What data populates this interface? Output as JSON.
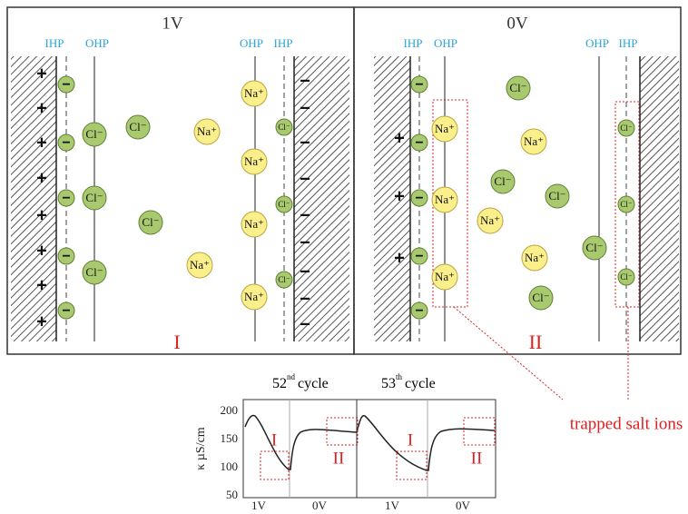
{
  "panels": [
    {
      "voltage": "1V",
      "label": "I",
      "planes": [
        "IHP",
        "OHP",
        "OHP",
        "IHP"
      ],
      "charges": [
        "+",
        "+",
        "+",
        "+",
        "+",
        "+",
        "+",
        "+",
        "−",
        "−",
        "−",
        "−",
        "−",
        "−",
        "−",
        "−",
        "−"
      ],
      "ions": [
        "−",
        "−",
        "−",
        "−",
        "−",
        "Cl⁻",
        "Cl⁻",
        "Cl⁻",
        "Cl⁻",
        "Cl⁻",
        "Na⁺",
        "Na⁺",
        "Na⁺",
        "Na⁺",
        "Na⁺",
        "Na⁺",
        "Cl⁻",
        "Cl⁻",
        "Cl⁻"
      ]
    },
    {
      "voltage": "0V",
      "label": "II",
      "planes": [
        "IHP",
        "OHP",
        "OHP",
        "IHP"
      ],
      "charges": [
        "+",
        "+",
        "+"
      ],
      "ions": [
        "−",
        "−",
        "−",
        "−",
        "−",
        "Na⁺",
        "Na⁺",
        "Na⁺",
        "Cl⁻",
        "Cl⁻",
        "Cl⁻",
        "Cl⁻",
        "Cl⁻",
        "Na⁺",
        "Na⁺",
        "Na⁺",
        "Cl⁻",
        "Cl⁻",
        "Cl⁻"
      ]
    }
  ],
  "annotation": "trapped salt ions",
  "chart": {
    "y_label": "κ µS/cm",
    "yticks": [
      200,
      150,
      100,
      50
    ],
    "x_labels": [
      "1V",
      "0V",
      "1V",
      "0V"
    ],
    "state_labels": [
      "I",
      "II",
      "I",
      "II"
    ],
    "cycles": [
      {
        "number": "52",
        "suffix": "nd",
        "word": "cycle"
      },
      {
        "number": "53",
        "suffix": "th",
        "word": "cycle"
      }
    ]
  }
}
